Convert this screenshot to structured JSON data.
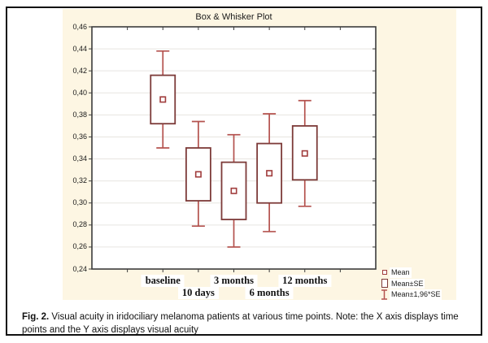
{
  "chart_data": {
    "type": "box",
    "title": "Box & Whisker Plot",
    "categories": [
      "baseline",
      "10 days",
      "3 months",
      "6 months",
      "12 months"
    ],
    "category_label_rows": [
      0,
      1,
      0,
      1,
      0
    ],
    "series": [
      {
        "name": "baseline",
        "mean": 0.394,
        "se_low": 0.372,
        "se_high": 0.416,
        "ci_low": 0.35,
        "ci_high": 0.438
      },
      {
        "name": "10 days",
        "mean": 0.326,
        "se_low": 0.302,
        "se_high": 0.35,
        "ci_low": 0.279,
        "ci_high": 0.374
      },
      {
        "name": "3 months",
        "mean": 0.311,
        "se_low": 0.285,
        "se_high": 0.337,
        "ci_low": 0.26,
        "ci_high": 0.362
      },
      {
        "name": "6 months",
        "mean": 0.327,
        "se_low": 0.3,
        "se_high": 0.354,
        "ci_low": 0.274,
        "ci_high": 0.381
      },
      {
        "name": "12 months",
        "mean": 0.345,
        "se_low": 0.321,
        "se_high": 0.37,
        "ci_low": 0.297,
        "ci_high": 0.393
      }
    ],
    "ylim": [
      0.24,
      0.46
    ],
    "y_tick_step": 0.02,
    "y_tick_labels": [
      "0,46",
      "0,44",
      "0,42",
      "0,40",
      "0,38",
      "0,36",
      "0,34",
      "0,32",
      "0,30",
      "0,28",
      "0,26",
      "0,24"
    ],
    "grid": "horizontal-on",
    "legend": {
      "position": "bottom-right",
      "items": [
        {
          "symbol": "mean-marker",
          "label": "Mean"
        },
        {
          "symbol": "se-box",
          "label": "Mean±SE"
        },
        {
          "symbol": "ci-whisker",
          "label": "Mean±1,96*SE"
        }
      ]
    },
    "colors": {
      "whisker": "#b4524e",
      "box_border": "#7d3b39",
      "mean_marker": "#a03c3c",
      "frame": "#3c3c3c",
      "grid": "#e7e5e0",
      "panel_bg": "#fdf6e3",
      "plot_bg": "#ffffff",
      "text": "#1a1a1a"
    }
  },
  "caption": {
    "prefix": "Fig. 2.",
    "text": " Visual acuity in iridociliary melanoma patients at various time points. Note: the X axis displays time points and the Y axis displays visual acuity"
  }
}
